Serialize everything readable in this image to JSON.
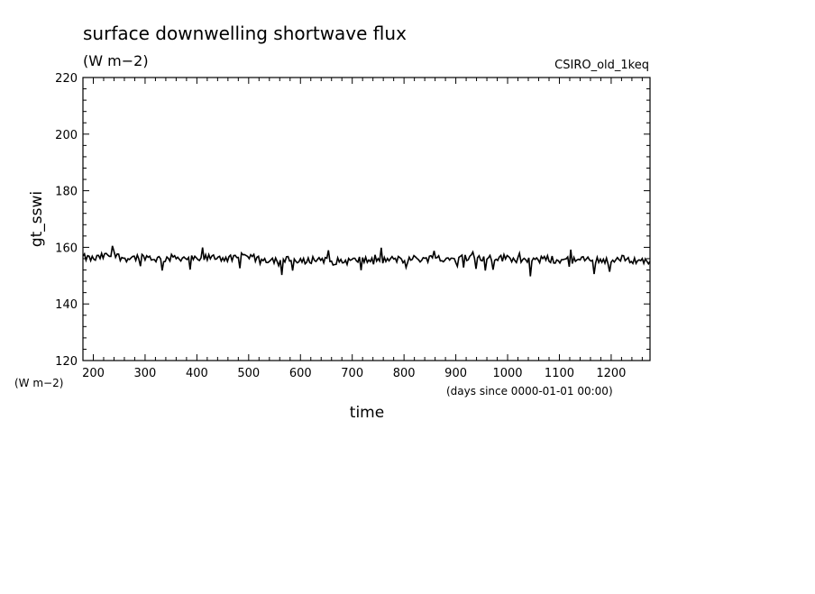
{
  "chart_data": {
    "type": "line",
    "title": "surface downwelling shortwave flux",
    "subtitle": "(W m−2)",
    "model_label": "CSIRO_old_1keq",
    "ylabel": "gt_sswi",
    "y_units_label": "(W m−2)",
    "xlabel": "time",
    "x_units_label": "(days since 0000-01-01 00:00)",
    "xlim": [
      180,
      1275
    ],
    "ylim": [
      120,
      220
    ],
    "xticks": [
      200,
      300,
      400,
      500,
      600,
      700,
      800,
      900,
      1000,
      1100,
      1200
    ],
    "yticks": [
      120,
      140,
      160,
      180,
      200,
      220
    ],
    "grid": false,
    "line_color": "#000000",
    "series": [
      {
        "x": [
          180,
          200,
          220,
          240,
          260,
          280,
          300,
          320,
          340,
          360,
          380,
          400,
          420,
          440,
          460,
          480,
          500,
          520,
          540,
          560,
          580,
          600,
          620,
          640,
          660,
          680,
          700,
          720,
          740,
          760,
          780,
          800,
          820,
          840,
          860,
          880,
          900,
          920,
          940,
          960,
          980,
          1000,
          1020,
          1040,
          1060,
          1080,
          1100,
          1120,
          1140,
          1160,
          1180,
          1200,
          1220,
          1240,
          1260,
          1275
        ],
        "y": [
          156.5,
          155.8,
          156.9,
          157.2,
          156.1,
          156.4,
          156.8,
          155.9,
          156.0,
          156.5,
          156.2,
          155.7,
          156.3,
          156.6,
          156.0,
          155.9,
          156.4,
          156.1,
          155.6,
          155.8,
          155.5,
          154.8,
          155.6,
          155.9,
          155.2,
          155.0,
          155.3,
          155.7,
          155.0,
          155.4,
          155.8,
          155.6,
          156.0,
          155.9,
          156.3,
          156.1,
          155.8,
          156.5,
          156.2,
          155.9,
          156.1,
          156.4,
          155.7,
          155.3,
          155.6,
          155.9,
          155.2,
          155.6,
          155.4,
          155.8,
          155.6,
          155.1,
          156.0,
          155.5,
          155.3,
          154.6
        ]
      }
    ]
  }
}
